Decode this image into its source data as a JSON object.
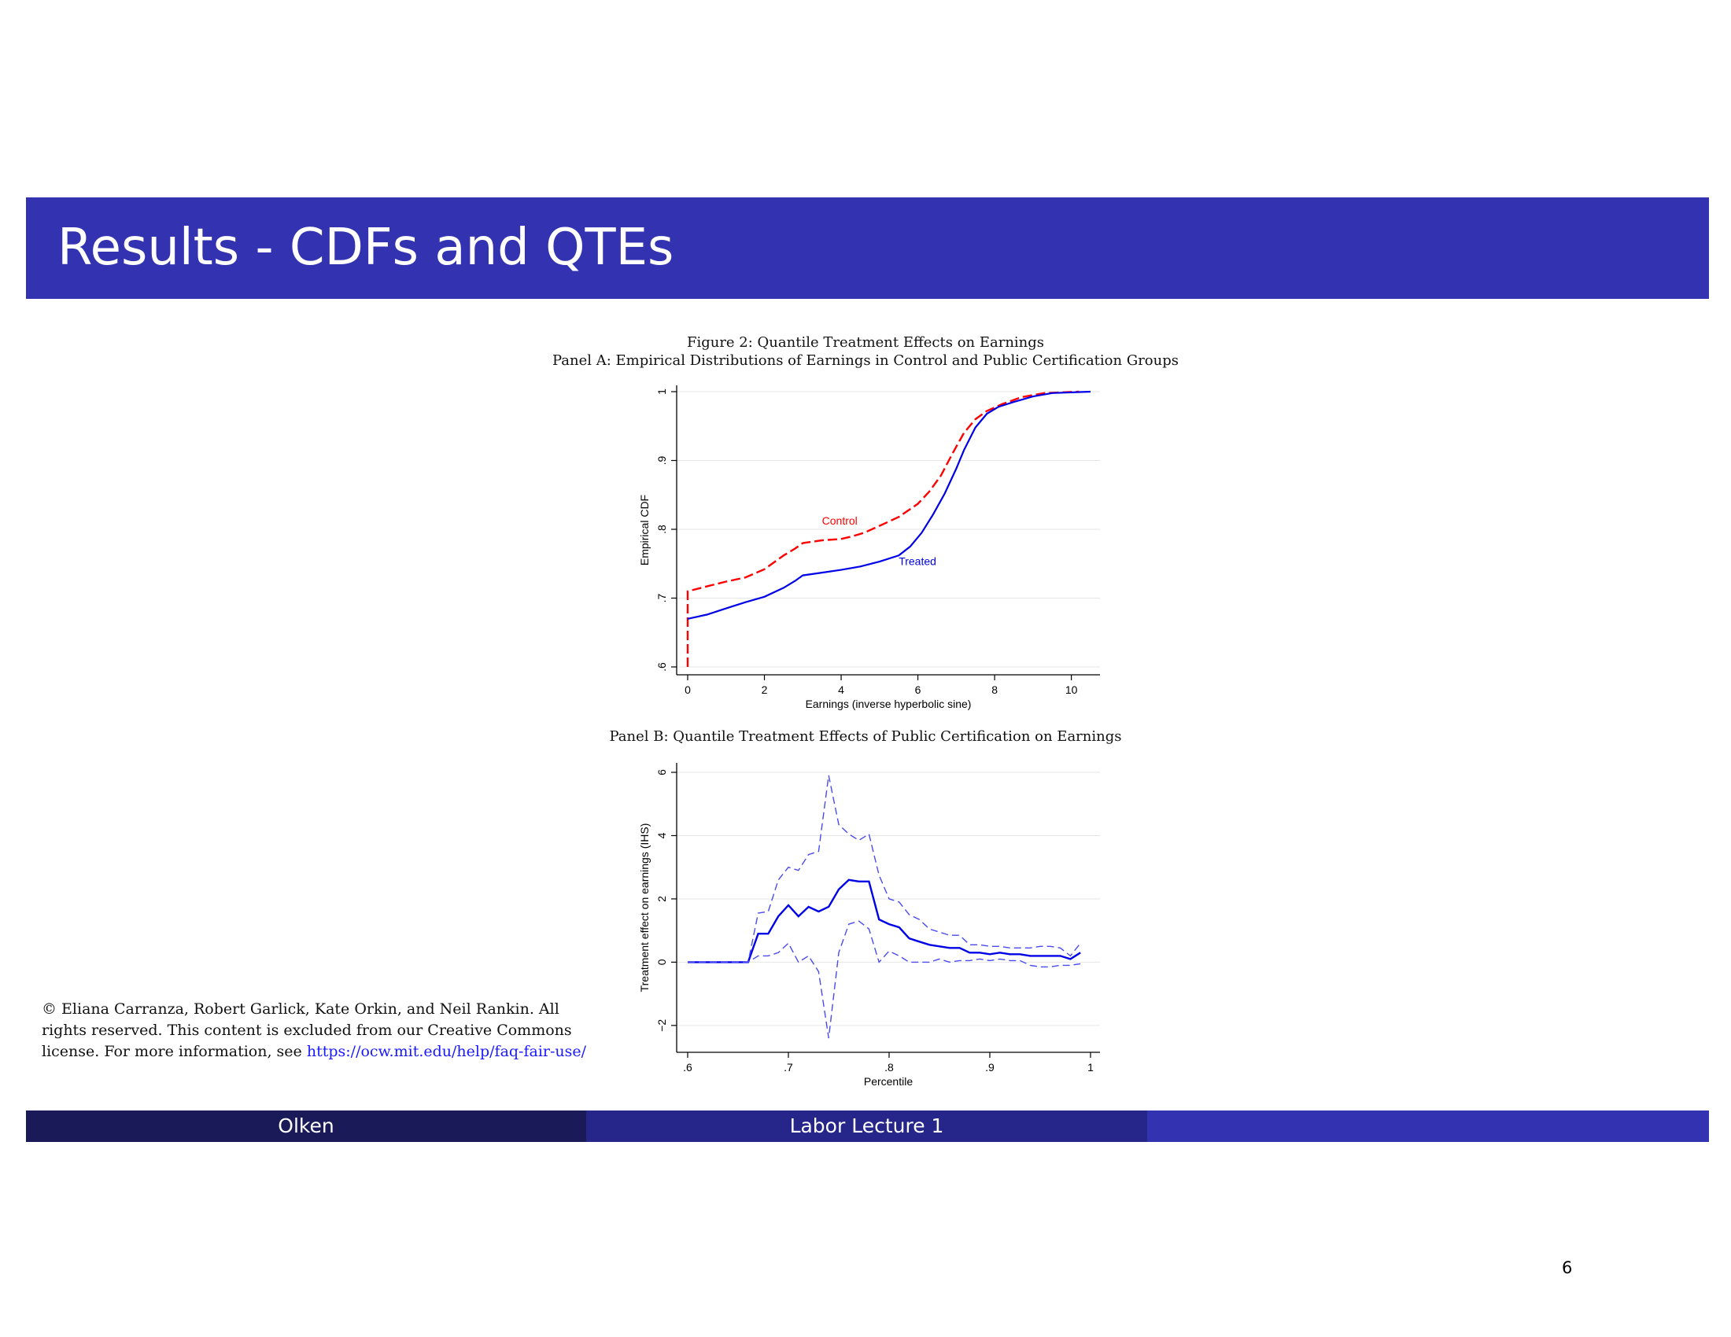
{
  "slide": {
    "title": "Results - CDFs and QTEs",
    "page_number": "6"
  },
  "figure": {
    "title": "Figure 2: Quantile Treatment Effects on Earnings",
    "panel_a_title": "Panel A: Empirical Distributions of Earnings in Control and Public Certification Groups",
    "panel_b_title": "Panel B: Quantile Treatment Effects of Public Certification on Earnings"
  },
  "copyright": {
    "text": "© Eliana Carranza, Robert Garlick, Kate Orkin, and Neil Rankin. All rights reserved. This content is excluded from our Creative Commons license. For more information, see ",
    "link": "https://ocw.mit.edu/help/faq-fair-use/"
  },
  "footer": {
    "author": "Olken",
    "lecture": "Labor Lecture 1"
  },
  "colors": {
    "title_bar": "#3333b2",
    "footer_dark": "#1a1a59",
    "footer_mid": "#26268a",
    "control": "#ff0000",
    "treated": "#0000e6"
  },
  "chart_data": [
    {
      "type": "line",
      "xlabel": "Earnings (inverse hyperbolic sine)",
      "ylabel": "Empirical CDF",
      "xlim": [
        0,
        10.5
      ],
      "ylim": [
        0.6,
        1.0
      ],
      "x_ticks": [
        0,
        2,
        4,
        6,
        8,
        10
      ],
      "x_tick_labels": [
        "0",
        "2",
        "4",
        "6",
        "8",
        "10"
      ],
      "y_ticks": [
        0.6,
        0.7,
        0.8,
        0.9,
        1.0
      ],
      "y_tick_labels": [
        ".6",
        ".7",
        ".8",
        ".9",
        "1"
      ],
      "grid": true,
      "series": [
        {
          "name": "Control",
          "color": "#ff0000",
          "dash": "dashed",
          "points": [
            [
              0,
              0.6
            ],
            [
              0,
              0.71
            ],
            [
              0.5,
              0.717
            ],
            [
              1,
              0.724
            ],
            [
              1.5,
              0.73
            ],
            [
              2,
              0.742
            ],
            [
              2.5,
              0.762
            ],
            [
              2.8,
              0.772
            ],
            [
              3,
              0.78
            ],
            [
              3.5,
              0.784
            ],
            [
              4,
              0.786
            ],
            [
              4.3,
              0.79
            ],
            [
              4.6,
              0.795
            ],
            [
              5,
              0.805
            ],
            [
              5.5,
              0.818
            ],
            [
              6,
              0.837
            ],
            [
              6.3,
              0.855
            ],
            [
              6.6,
              0.878
            ],
            [
              6.9,
              0.91
            ],
            [
              7.2,
              0.94
            ],
            [
              7.5,
              0.96
            ],
            [
              7.8,
              0.972
            ],
            [
              8.2,
              0.982
            ],
            [
              8.7,
              0.992
            ],
            [
              9.3,
              0.998
            ],
            [
              10.2,
              1.0
            ]
          ]
        },
        {
          "name": "Treated",
          "color": "#0000e6",
          "dash": "solid",
          "points": [
            [
              0,
              0.67
            ],
            [
              0.5,
              0.676
            ],
            [
              1,
              0.685
            ],
            [
              1.5,
              0.694
            ],
            [
              2,
              0.702
            ],
            [
              2.5,
              0.715
            ],
            [
              2.8,
              0.725
            ],
            [
              3,
              0.733
            ],
            [
              3.5,
              0.737
            ],
            [
              4,
              0.741
            ],
            [
              4.5,
              0.746
            ],
            [
              5,
              0.753
            ],
            [
              5.5,
              0.762
            ],
            [
              5.8,
              0.775
            ],
            [
              6.1,
              0.795
            ],
            [
              6.4,
              0.822
            ],
            [
              6.7,
              0.852
            ],
            [
              7,
              0.888
            ],
            [
              7.2,
              0.915
            ],
            [
              7.5,
              0.948
            ],
            [
              7.8,
              0.968
            ],
            [
              8.1,
              0.978
            ],
            [
              8.5,
              0.985
            ],
            [
              9,
              0.993
            ],
            [
              9.5,
              0.998
            ],
            [
              10.5,
              1.0
            ]
          ]
        }
      ],
      "annotations": [
        {
          "text": "Control",
          "x": 3.5,
          "y": 0.807,
          "color": "#ff0000"
        },
        {
          "text": "Treated",
          "x": 5.5,
          "y": 0.748,
          "color": "#0000e6"
        }
      ]
    },
    {
      "type": "line",
      "xlabel": "Percentile",
      "ylabel": "Treatment effect on earnings (IHS)",
      "xlim": [
        0.6,
        1.0
      ],
      "ylim": [
        -2.6,
        6.1
      ],
      "x_ticks": [
        0.6,
        0.7,
        0.8,
        0.9,
        1.0
      ],
      "x_tick_labels": [
        ".6",
        ".7",
        ".8",
        ".9",
        "1"
      ],
      "y_ticks": [
        -2,
        0,
        2,
        4,
        6
      ],
      "y_tick_labels": [
        "−2",
        "0",
        "2",
        "4",
        "6"
      ],
      "grid": true,
      "x": [
        0.6,
        0.61,
        0.62,
        0.63,
        0.64,
        0.65,
        0.66,
        0.67,
        0.68,
        0.69,
        0.7,
        0.71,
        0.72,
        0.73,
        0.74,
        0.75,
        0.76,
        0.77,
        0.78,
        0.79,
        0.8,
        0.81,
        0.82,
        0.83,
        0.84,
        0.85,
        0.86,
        0.87,
        0.88,
        0.89,
        0.9,
        0.91,
        0.92,
        0.93,
        0.94,
        0.95,
        0.96,
        0.97,
        0.98,
        0.99
      ],
      "series": [
        {
          "name": "",
          "color": "#0000e6",
          "dash": "solid",
          "width": 2.4,
          "values": [
            0,
            0,
            0,
            0,
            0,
            0,
            0,
            0.9,
            0.9,
            1.45,
            1.8,
            1.45,
            1.75,
            1.6,
            1.75,
            2.3,
            2.6,
            2.55,
            2.55,
            1.35,
            1.2,
            1.1,
            0.75,
            0.65,
            0.55,
            0.5,
            0.45,
            0.45,
            0.3,
            0.3,
            0.25,
            0.3,
            0.25,
            0.25,
            0.2,
            0.2,
            0.2,
            0.2,
            0.1,
            0.3
          ]
        },
        {
          "name": "",
          "color": "#4a4af0",
          "dash": "dashed",
          "width": 1.4,
          "values": [
            0,
            0,
            0,
            0,
            0,
            0,
            0,
            1.55,
            1.6,
            2.6,
            3.0,
            2.9,
            3.4,
            3.5,
            5.9,
            4.35,
            4.05,
            3.85,
            4.05,
            2.75,
            2.0,
            1.9,
            1.5,
            1.35,
            1.05,
            0.95,
            0.85,
            0.85,
            0.55,
            0.55,
            0.5,
            0.5,
            0.45,
            0.45,
            0.45,
            0.5,
            0.5,
            0.45,
            0.2,
            0.6
          ]
        },
        {
          "name": "",
          "color": "#4a4af0",
          "dash": "dashed",
          "width": 1.4,
          "values": [
            0,
            0,
            0,
            0,
            0,
            0,
            0,
            0.2,
            0.2,
            0.3,
            0.6,
            0.0,
            0.2,
            -0.3,
            -2.4,
            0.3,
            1.2,
            1.3,
            1.05,
            0.0,
            0.35,
            0.2,
            0.0,
            0.0,
            0.0,
            0.1,
            0.0,
            0.05,
            0.05,
            0.1,
            0.05,
            0.1,
            0.05,
            0.05,
            -0.1,
            -0.15,
            -0.15,
            -0.1,
            -0.1,
            -0.05
          ]
        }
      ]
    }
  ]
}
